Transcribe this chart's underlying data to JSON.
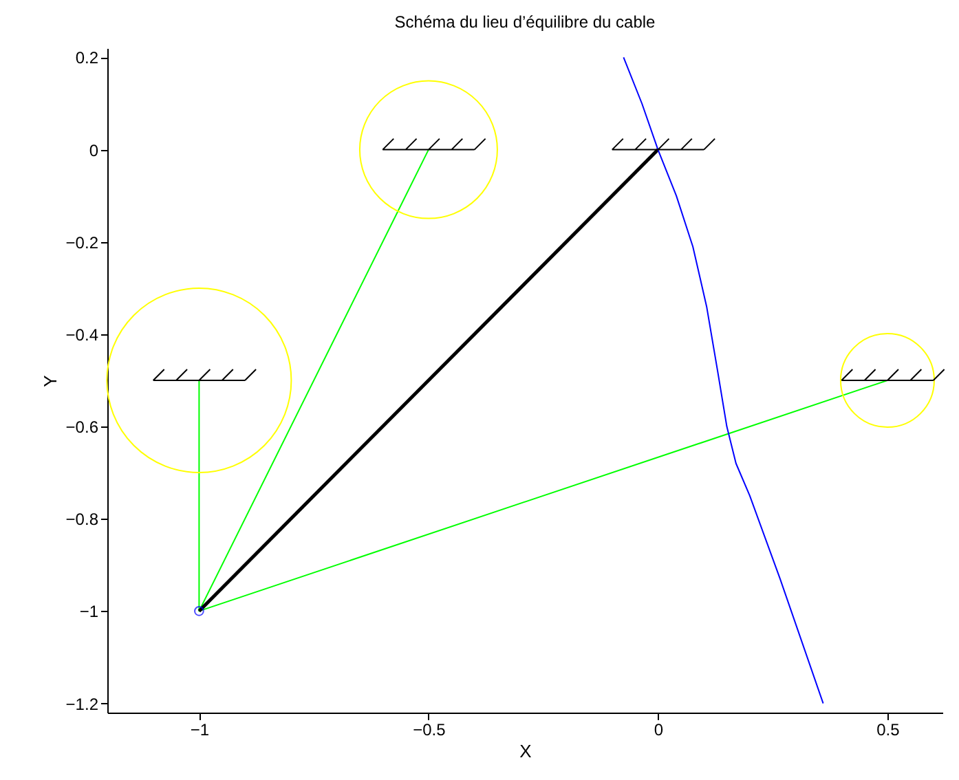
{
  "chart_data": {
    "type": "line",
    "title": "Schéma du lieu d’équilibre du cable",
    "xlabel": "X",
    "ylabel": "Y",
    "xlim": [
      -1.2,
      0.62
    ],
    "ylim": [
      -1.22,
      0.22
    ],
    "xticks": [
      -1,
      -0.5,
      0,
      0.5
    ],
    "yticks": [
      -1.2,
      -1,
      -0.8,
      -0.6,
      -0.4,
      -0.2,
      0,
      0.2
    ],
    "grid": false,
    "series": [
      {
        "color": "#00ff00",
        "x": [
          -1,
          -1,
          -0.5,
          -1,
          0.5
        ],
        "values": [
          -0.5,
          -1,
          0,
          -1,
          -0.5
        ]
      },
      {
        "color": "#000000",
        "x": [
          -1,
          0
        ],
        "values": [
          -1,
          0
        ]
      },
      {
        "color": "#0000ff",
        "x": [
          -0.075,
          -0.035,
          0,
          0.04,
          0.076,
          0.106,
          0.13,
          0.15,
          0.17,
          0.2,
          0.266,
          0.36
        ],
        "values": [
          0.2,
          0.1,
          0,
          -0.1,
          -0.21,
          -0.34,
          -0.48,
          -0.6,
          -0.68,
          -0.75,
          -0.93,
          -1.2
        ]
      },
      {
        "type": "scatter",
        "color": "#0000ff",
        "marker": "circle",
        "x": [
          -1
        ],
        "values": [
          -1
        ]
      }
    ]
  }
}
